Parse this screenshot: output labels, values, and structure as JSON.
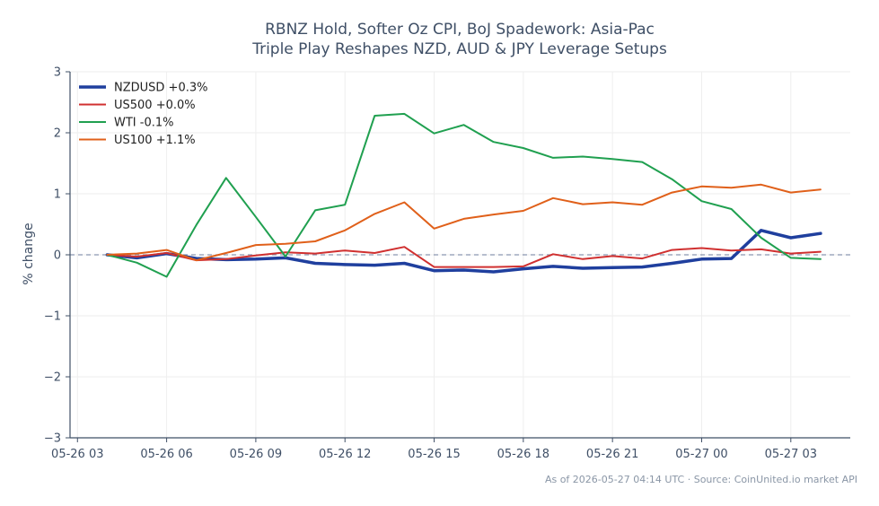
{
  "chart_data": {
    "type": "line",
    "title": [
      "RBNZ Hold, Softer Oz CPI, BoJ Spadework: Asia-Pac",
      "Triple Play Reshapes NZD, AUD & JPY Leverage Setups"
    ],
    "ylabel": "% change",
    "xlabel": "",
    "ylim": [
      -3,
      3
    ],
    "yticks": [
      3,
      2,
      1,
      0,
      -1,
      -2,
      -3
    ],
    "ytick_labels": [
      "3",
      "2",
      "1",
      "0",
      "−1",
      "−2",
      "−3"
    ],
    "xticks": [
      "05-26 03",
      "05-26 06",
      "05-26 09",
      "05-26 12",
      "05-26 15",
      "05-26 18",
      "05-26 21",
      "05-27 00",
      "05-27 03"
    ],
    "xtick_hours": [
      0,
      3,
      6,
      9,
      12,
      15,
      18,
      21,
      24
    ],
    "xlim_hours": [
      -0.25,
      26.0
    ],
    "x_hours": [
      1,
      2,
      3,
      4,
      5,
      6,
      7,
      8,
      9,
      10,
      11,
      12,
      13,
      14,
      15,
      16,
      17,
      18,
      19,
      20,
      21,
      22,
      23,
      24,
      25
    ],
    "grid": true,
    "zero_line": true,
    "legend_position": "top-left",
    "series": [
      {
        "name": "NZDUSD +0.3%",
        "color": "#1f3f9e",
        "width": 3.5,
        "values": [
          0.0,
          -0.05,
          0.02,
          -0.06,
          -0.08,
          -0.07,
          -0.05,
          -0.14,
          -0.16,
          -0.17,
          -0.14,
          -0.26,
          -0.25,
          -0.28,
          -0.23,
          -0.19,
          -0.22,
          -0.21,
          -0.2,
          -0.14,
          -0.07,
          -0.06,
          0.4,
          0.28,
          0.35
        ]
      },
      {
        "name": "US500 +0.0%",
        "color": "#d03030",
        "width": 2,
        "values": [
          0.0,
          -0.03,
          0.03,
          -0.09,
          -0.07,
          -0.01,
          0.04,
          0.02,
          0.07,
          0.03,
          0.13,
          -0.2,
          -0.2,
          -0.2,
          -0.19,
          0.01,
          -0.07,
          -0.02,
          -0.06,
          0.08,
          0.11,
          0.07,
          0.09,
          0.02,
          0.05
        ]
      },
      {
        "name": "WTI -0.1%",
        "color": "#20a050",
        "width": 2,
        "values": [
          0.0,
          -0.13,
          -0.36,
          0.49,
          1.26,
          0.62,
          -0.03,
          0.73,
          0.82,
          2.28,
          2.31,
          1.99,
          2.13,
          1.85,
          1.75,
          1.59,
          1.61,
          1.57,
          1.52,
          1.24,
          0.88,
          0.75,
          0.28,
          -0.05,
          -0.07
        ]
      },
      {
        "name": "US100 +1.1%",
        "color": "#e0601a",
        "width": 2,
        "values": [
          0.0,
          0.02,
          0.08,
          -0.09,
          0.03,
          0.16,
          0.18,
          0.22,
          0.4,
          0.67,
          0.86,
          0.43,
          0.59,
          0.66,
          0.72,
          0.93,
          0.83,
          0.86,
          0.82,
          1.02,
          1.12,
          1.1,
          1.15,
          1.02,
          1.07
        ]
      }
    ],
    "footer": "As of 2026-05-27 04:14 UTC · Source: CoinUnited.io market API"
  },
  "colors": {
    "axis": "#3f4f66",
    "grid": "#eeeeee",
    "zero_line": "#8a96b0"
  }
}
